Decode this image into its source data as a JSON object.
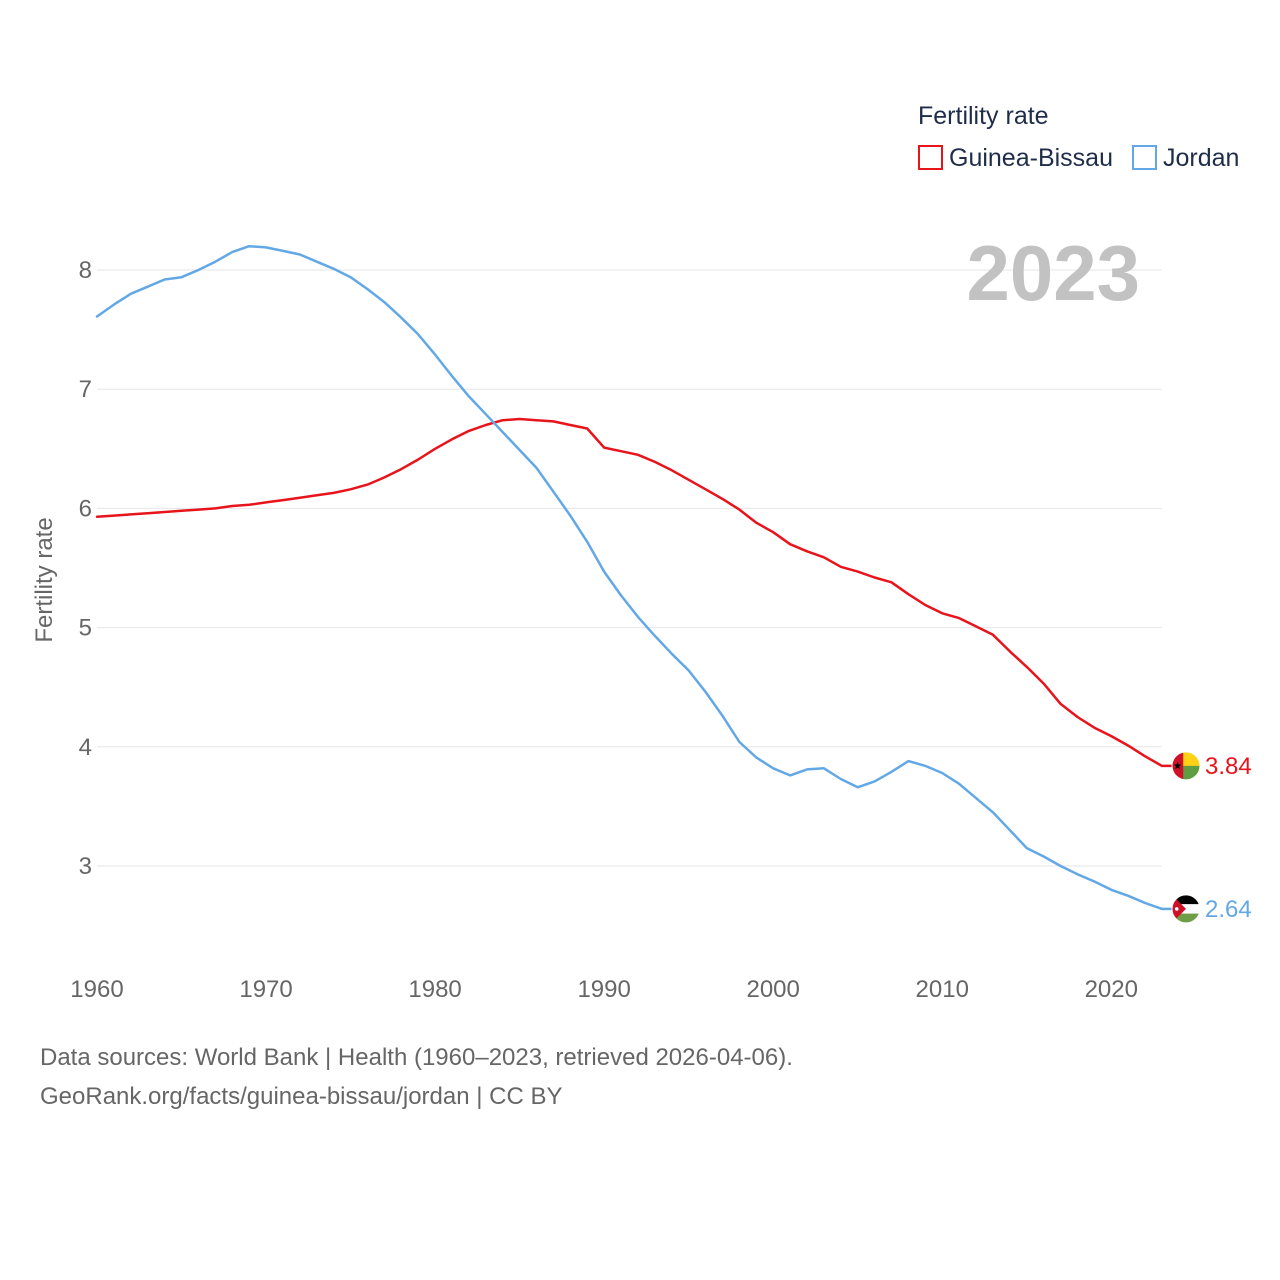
{
  "chart_data": {
    "type": "line",
    "title": "Fertility rate",
    "ylabel": "Fertility rate",
    "xlabel": "",
    "highlight_year": "2023",
    "xlim": [
      1960,
      2023
    ],
    "ylim": [
      2.45,
      8.5
    ],
    "x_ticks": [
      1960,
      1970,
      1980,
      1990,
      2000,
      2010,
      2020
    ],
    "y_ticks": [
      3,
      4,
      5,
      6,
      7,
      8
    ],
    "x": [
      1960,
      1961,
      1962,
      1963,
      1964,
      1965,
      1966,
      1967,
      1968,
      1969,
      1970,
      1971,
      1972,
      1973,
      1974,
      1975,
      1976,
      1977,
      1978,
      1979,
      1980,
      1981,
      1982,
      1983,
      1984,
      1985,
      1986,
      1987,
      1988,
      1989,
      1990,
      1991,
      1992,
      1993,
      1994,
      1995,
      1996,
      1997,
      1998,
      1999,
      2000,
      2001,
      2002,
      2003,
      2004,
      2005,
      2006,
      2007,
      2008,
      2009,
      2010,
      2011,
      2012,
      2013,
      2014,
      2015,
      2016,
      2017,
      2018,
      2019,
      2020,
      2021,
      2022,
      2023
    ],
    "series": [
      {
        "name": "Guinea-Bissau",
        "color": "#e8141c",
        "end_label": "3.84",
        "flag": "guinea-bissau-flag",
        "values": [
          5.93,
          5.94,
          5.95,
          5.96,
          5.97,
          5.98,
          5.99,
          6.0,
          6.02,
          6.03,
          6.05,
          6.07,
          6.09,
          6.11,
          6.13,
          6.16,
          6.2,
          6.26,
          6.33,
          6.41,
          6.5,
          6.58,
          6.65,
          6.7,
          6.74,
          6.75,
          6.74,
          6.73,
          6.7,
          6.67,
          6.51,
          6.48,
          6.45,
          6.39,
          6.32,
          6.24,
          6.16,
          6.08,
          5.99,
          5.88,
          5.8,
          5.7,
          5.64,
          5.59,
          5.51,
          5.47,
          5.42,
          5.38,
          5.28,
          5.19,
          5.12,
          5.08,
          5.01,
          4.94,
          4.8,
          4.67,
          4.53,
          4.36,
          4.25,
          4.16,
          4.09,
          4.01,
          3.92,
          3.84
        ]
      },
      {
        "name": "Jordan",
        "color": "#63a8e6",
        "end_label": "2.64",
        "flag": "jordan-flag",
        "values": [
          7.61,
          7.71,
          7.8,
          7.86,
          7.92,
          7.94,
          8.0,
          8.07,
          8.15,
          8.2,
          8.19,
          8.16,
          8.13,
          8.07,
          8.01,
          7.94,
          7.84,
          7.73,
          7.6,
          7.46,
          7.29,
          7.11,
          6.94,
          6.79,
          6.64,
          6.49,
          6.34,
          6.14,
          5.94,
          5.72,
          5.47,
          5.27,
          5.09,
          4.93,
          4.78,
          4.64,
          4.46,
          4.26,
          4.04,
          3.91,
          3.82,
          3.76,
          3.81,
          3.82,
          3.73,
          3.66,
          3.71,
          3.79,
          3.88,
          3.84,
          3.78,
          3.69,
          3.57,
          3.45,
          3.3,
          3.15,
          3.08,
          3.0,
          2.93,
          2.87,
          2.8,
          2.75,
          2.69,
          2.64
        ]
      }
    ]
  },
  "legend": {
    "title": "Fertility rate",
    "items": [
      "Guinea-Bissau",
      "Jordan"
    ]
  },
  "footer": {
    "line1": "Data sources: World Bank | Health (1960–2023, retrieved 2026-04-06).",
    "line2": "GeoRank.org/facts/guinea-bissau/jordan | CC BY"
  }
}
